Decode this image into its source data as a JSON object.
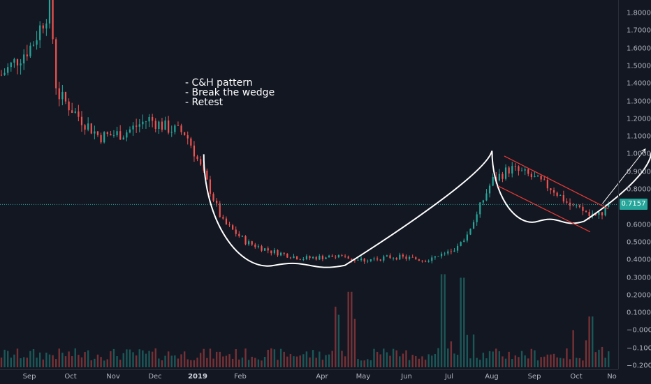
{
  "annotations": [
    "- C&H pattern",
    "- Break the wedge",
    "- Retest"
  ],
  "last_price": "0.7157",
  "colors": {
    "background": "#131722",
    "up": "#26a69a",
    "down": "#ef5350",
    "drawing": "#ffffff",
    "wedge": "#e53935",
    "price_line": "#26a69a"
  },
  "chart_data": {
    "type": "candlestick",
    "x_tick_labels": [
      "Sep",
      "Oct",
      "Nov",
      "Dec",
      "2019",
      "Feb",
      "Apr",
      "May",
      "Jun",
      "Jul",
      "Aug",
      "Sep",
      "Oct",
      "No"
    ],
    "y_tick_labels": [
      "1.8000",
      "1.7000",
      "1.6000",
      "1.5000",
      "1.4000",
      "1.3000",
      "1.2000",
      "1.1000",
      "1.0000",
      "0.9000",
      "0.8000",
      "0.6000",
      "0.5000",
      "0.4000",
      "0.3000",
      "0.2000",
      "0.1000",
      "−0.0000",
      "−0.1000",
      "−0.2000"
    ],
    "ylim": [
      -0.2,
      1.88
    ],
    "last_price": 0.7157,
    "price_path": [
      [
        0,
        1.45
      ],
      [
        5,
        1.62
      ],
      [
        8,
        1.85
      ],
      [
        9,
        1.35
      ],
      [
        13,
        1.2
      ],
      [
        16,
        1.1
      ],
      [
        20,
        1.12
      ],
      [
        24,
        1.2
      ],
      [
        27,
        1.15
      ],
      [
        30,
        1.12
      ],
      [
        31,
        1.05
      ],
      [
        34,
        0.8
      ],
      [
        36,
        0.62
      ],
      [
        40,
        0.5
      ],
      [
        44,
        0.45
      ],
      [
        49,
        0.41
      ],
      [
        54,
        0.42
      ],
      [
        59,
        0.4
      ],
      [
        64,
        0.42
      ],
      [
        69,
        0.4
      ],
      [
        74,
        0.45
      ],
      [
        76,
        0.55
      ],
      [
        78,
        0.7
      ],
      [
        80,
        0.85
      ],
      [
        83,
        0.92
      ],
      [
        86,
        0.88
      ],
      [
        90,
        0.8
      ],
      [
        93,
        0.7
      ],
      [
        97,
        0.65
      ],
      [
        99,
        0.7
      ]
    ],
    "cup_handle_curve": [
      [
        33,
        1.0
      ],
      [
        56,
        0.37
      ],
      [
        80,
        1.02
      ],
      [
        95,
        0.62
      ],
      [
        106,
        1.01
      ]
    ],
    "wedge_upper": [
      [
        82,
        0.99
      ],
      [
        99,
        0.69
      ]
    ],
    "wedge_lower": [
      [
        81,
        0.82
      ],
      [
        96,
        0.56
      ]
    ],
    "projection_arrows": [
      [
        [
          98,
          0.72
        ],
        [
          105,
          1.03
        ]
      ],
      [
        [
          109,
          1.1
        ],
        [
          115,
          1.31
        ]
      ]
    ],
    "volume_spikes": [
      [
        72,
        0.32
      ],
      [
        75,
        0.3
      ],
      [
        57,
        0.22
      ],
      [
        96,
        0.08
      ]
    ],
    "grid": false
  }
}
